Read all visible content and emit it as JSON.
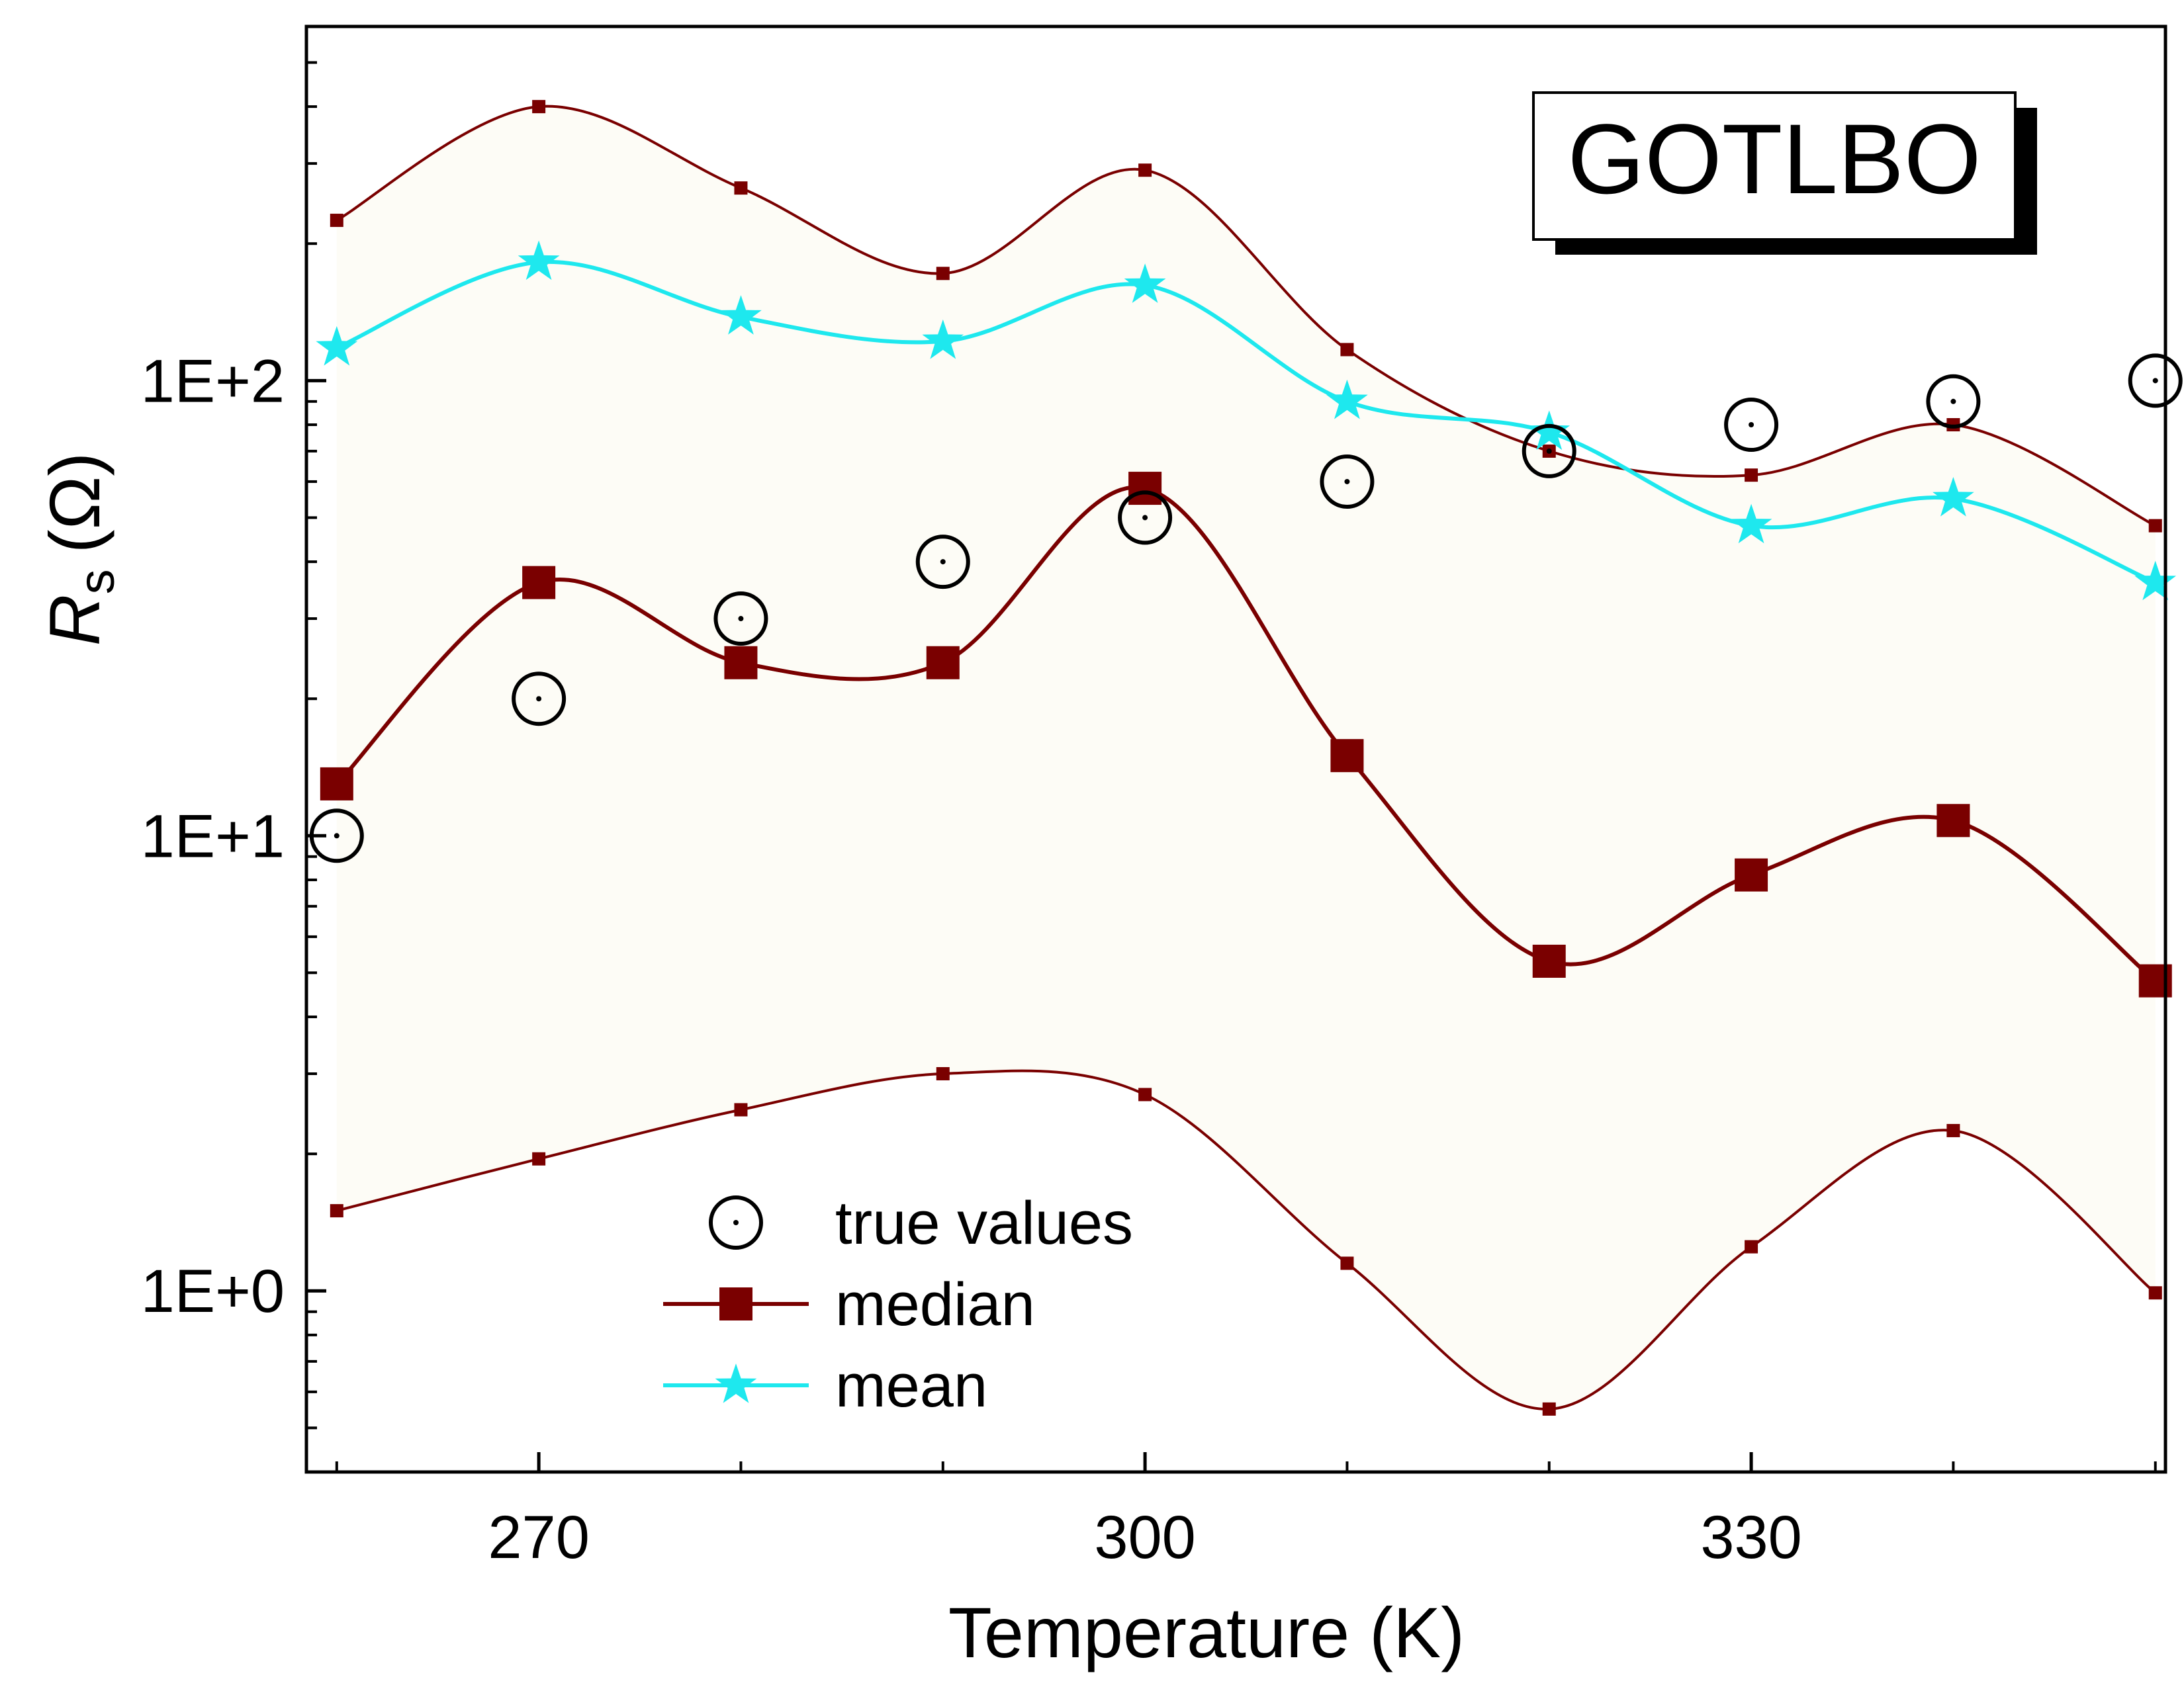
{
  "chart_data": {
    "type": "line",
    "title": "",
    "panel_label": "GOTLBO",
    "xlabel": "Temperature (K)",
    "ylabel_main": "R",
    "ylabel_sub": "s",
    "ylabel_unit": "(Ω)",
    "xscale": "linear",
    "yscale": "log",
    "xlim": [
      258.5,
      350.5
    ],
    "ylim": [
      0.4,
      600
    ],
    "x_ticks": [
      270,
      300,
      330
    ],
    "x_tick_labels": [
      "270",
      "300",
      "330"
    ],
    "x_minor_ticks": [
      260,
      280,
      290,
      310,
      320,
      340,
      350
    ],
    "y_ticks": [
      1,
      10,
      100
    ],
    "y_tick_labels": [
      "1E+0",
      "1E+1",
      "1E+2"
    ],
    "grid": false,
    "legend_placement": "bottom-center",
    "shaded_band": {
      "between": [
        "upper",
        "lower"
      ],
      "color": "#fdfcf6"
    },
    "x": [
      260,
      270,
      280,
      290,
      300,
      310,
      320,
      330,
      340,
      350
    ],
    "series": [
      {
        "name": "true values",
        "role": "true",
        "marker": "circle-dot",
        "color": "#000000",
        "values": [
          10,
          20,
          30,
          40,
          50,
          60,
          70,
          80,
          90,
          100
        ]
      },
      {
        "name": "median",
        "role": "median",
        "marker": "square",
        "color": "#7a0000",
        "values": [
          13,
          36,
          24,
          24,
          58,
          15,
          5.3,
          8.2,
          10.8,
          4.8
        ]
      },
      {
        "name": "mean",
        "role": "mean",
        "marker": "star",
        "color": "#1ee8ee",
        "values": [
          118,
          182,
          138,
          122,
          162,
          90,
          77,
          48,
          55,
          36
        ]
      },
      {
        "role": "upper",
        "marker": "small-square",
        "color": "#7a0000",
        "values": [
          225,
          400,
          265,
          172,
          290,
          117,
          70,
          62,
          80,
          48
        ]
      },
      {
        "role": "lower",
        "marker": "small-square",
        "color": "#7a0000",
        "values": [
          1.5,
          1.95,
          2.5,
          3.0,
          2.7,
          1.15,
          0.55,
          1.25,
          2.25,
          0.99
        ]
      }
    ]
  }
}
